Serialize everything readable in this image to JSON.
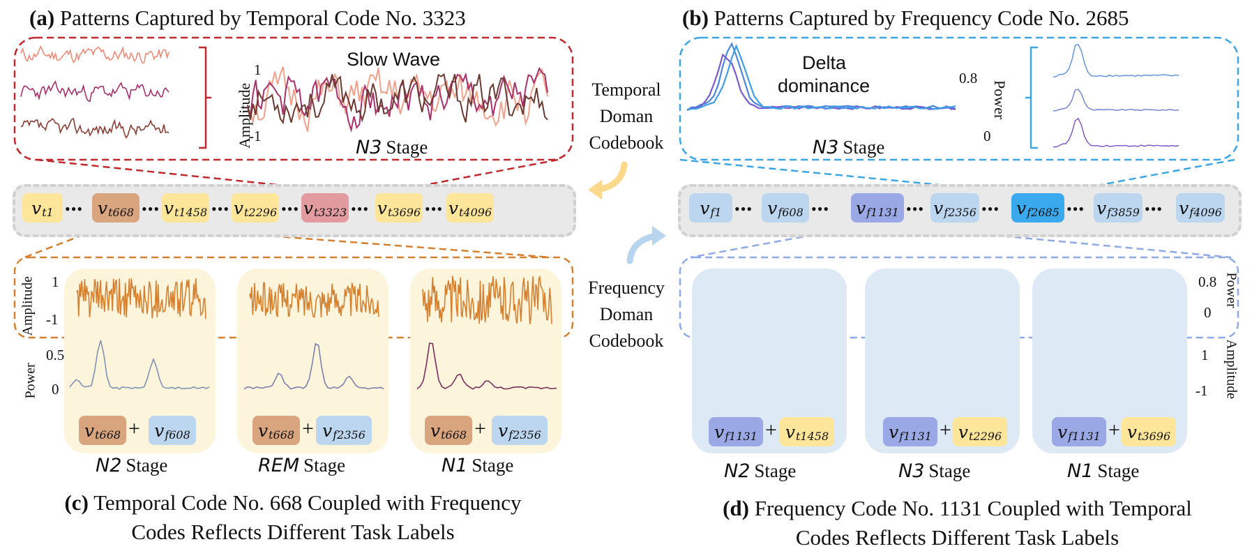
{
  "panel_a": {
    "letter": "(a)",
    "title": "Patterns Captured by Temporal Code No. 3323",
    "wave_label": "Slow Wave",
    "stage": "N3",
    "stage_word": "Stage",
    "y_axis": "Amplitude",
    "y_top": "1",
    "y_bottom": "-1"
  },
  "panel_b": {
    "letter": "(b)",
    "title": "Patterns Captured by Frequency Code No. 2685",
    "wave_label_1": "Delta",
    "wave_label_2": "dominance",
    "stage": "N3",
    "stage_word": "Stage",
    "y_axis": "Power",
    "y_top": "0.8",
    "y_bottom": "0"
  },
  "middle": {
    "temporal_1": "Temporal",
    "temporal_2": "Doman",
    "temporal_3": "Codebook",
    "frequency_1": "Frequency",
    "frequency_2": "Doman",
    "frequency_3": "Codebook"
  },
  "temporal_codebook": [
    {
      "v": "v",
      "sub": "t1"
    },
    {
      "v": "v",
      "sub": "t668"
    },
    {
      "v": "v",
      "sub": "t1458"
    },
    {
      "v": "v",
      "sub": "t2296"
    },
    {
      "v": "v",
      "sub": "t3323"
    },
    {
      "v": "v",
      "sub": "t3696"
    },
    {
      "v": "v",
      "sub": "t4096"
    }
  ],
  "frequency_codebook": [
    {
      "v": "v",
      "sub": "f1"
    },
    {
      "v": "v",
      "sub": "f608"
    },
    {
      "v": "v",
      "sub": "f1131"
    },
    {
      "v": "v",
      "sub": "f2356"
    },
    {
      "v": "v",
      "sub": "f2685"
    },
    {
      "v": "v",
      "sub": "f3859"
    },
    {
      "v": "v",
      "sub": "f4096"
    }
  ],
  "dots": "•••",
  "panel_c": {
    "letter": "(c)",
    "caption_1": "Temporal Code No. 668 Coupled with Frequency",
    "caption_2": "Codes Reflects Different Task Labels",
    "amp_axis": "Amplitude",
    "amp_top": "1",
    "amp_bottom": "-1",
    "pow_axis": "Power",
    "pow_top": "0.5",
    "pow_bottom": "0",
    "columns": [
      {
        "stage": "N2",
        "stage_word": "Stage",
        "t": "t668",
        "f": "f608"
      },
      {
        "stage": "REM",
        "stage_word": "Stage",
        "t": "t668",
        "f": "f2356"
      },
      {
        "stage": "N1",
        "stage_word": "Stage",
        "t": "t668",
        "f": "f2356"
      }
    ]
  },
  "panel_d": {
    "letter": "(d)",
    "caption_1": "Frequency Code No. 1131 Coupled with Temporal",
    "caption_2": "Codes Reflects Different Task Labels",
    "amp_axis": "Amplitude",
    "amp_top": "1",
    "amp_bottom": "-1",
    "pow_axis": "Power",
    "pow_top": "0.8",
    "pow_bottom": "0",
    "columns": [
      {
        "stage": "N2",
        "stage_word": "Stage",
        "f": "f1131",
        "t": "t1458"
      },
      {
        "stage": "N3",
        "stage_word": "Stage",
        "f": "f1131",
        "t": "t2296"
      },
      {
        "stage": "N1",
        "stage_word": "Stage",
        "f": "f1131",
        "t": "t3696"
      }
    ]
  },
  "plus": "+",
  "colors": {
    "red": "#c0282d",
    "orange": "#d6802e",
    "blue": "#3aa6e6",
    "periwinkle": "#8ea9e6",
    "yellow": "#fde59a",
    "lightblue": "#bcd6ef",
    "tan": "#d9a57e",
    "pink": "#e29b9e",
    "bright_blue": "#3aa9ee",
    "violet": "#9aa9e5"
  }
}
